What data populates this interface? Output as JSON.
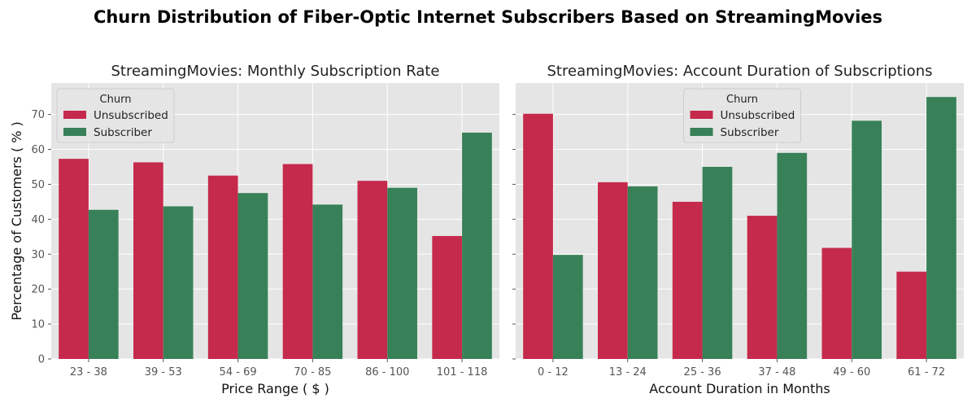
{
  "figure": {
    "suptitle": "Churn Distribution of Fiber-Optic Internet Subscribers Based on StreamingMovies",
    "colors": {
      "background": "#e5e5e5",
      "grid": "#ffffff",
      "unsubscribed": "#c52a4c",
      "subscriber": "#388158"
    }
  },
  "chart_data": [
    {
      "type": "bar",
      "title": "StreamingMovies: Monthly Subscription Rate",
      "xlabel": "Price Range ( $ )",
      "ylabel": "Percentage of Customers ( % )",
      "ylim": [
        0,
        79
      ],
      "yticks": [
        0,
        10,
        20,
        30,
        40,
        50,
        60,
        70
      ],
      "grid": true,
      "legend": {
        "title": "Churn",
        "position": "top-left"
      },
      "categories": [
        "23 - 38",
        "39 - 53",
        "54 - 69",
        "70 - 85",
        "86 - 100",
        "101 - 118"
      ],
      "series": [
        {
          "name": "Unsubscribed",
          "color": "#c52a4c",
          "values": [
            57.3,
            56.3,
            52.5,
            55.8,
            51.0,
            35.2
          ]
        },
        {
          "name": "Subscriber",
          "color": "#388158",
          "values": [
            42.7,
            43.7,
            47.5,
            44.2,
            49.0,
            64.8
          ]
        }
      ]
    },
    {
      "type": "bar",
      "title": "StreamingMovies: Account Duration of Subscriptions",
      "xlabel": "Account Duration in Months",
      "ylabel": "",
      "ylim": [
        0,
        79
      ],
      "yticks": [
        0,
        10,
        20,
        30,
        40,
        50,
        60,
        70
      ],
      "grid": true,
      "legend": {
        "title": "Churn",
        "position": "top-center"
      },
      "categories": [
        "0 - 12",
        "13 - 24",
        "25 - 36",
        "37 - 48",
        "49 - 60",
        "61 - 72"
      ],
      "series": [
        {
          "name": "Unsubscribed",
          "color": "#c52a4c",
          "values": [
            70.2,
            50.6,
            45.0,
            41.0,
            31.8,
            25.0
          ]
        },
        {
          "name": "Subscriber",
          "color": "#388158",
          "values": [
            29.8,
            49.4,
            55.0,
            59.0,
            68.2,
            75.0
          ]
        }
      ]
    }
  ]
}
